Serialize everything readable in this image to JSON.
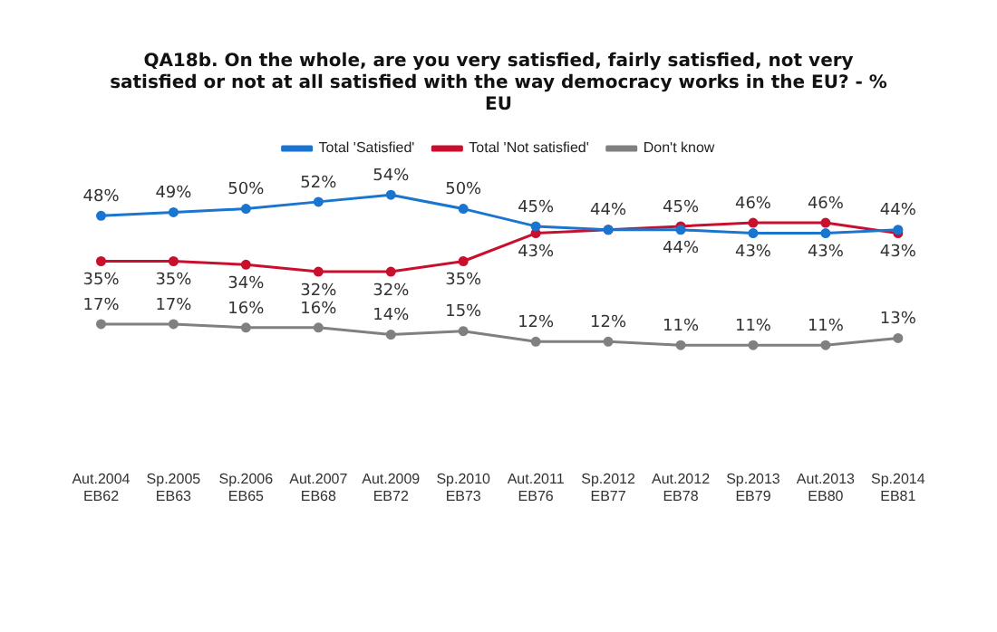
{
  "chart_data": {
    "type": "line",
    "title": "QA18b. On the whole, are you very satisfied, fairly satisfied, not very satisfied or not at all satisfied with the way democracy works in the EU? - % EU",
    "categories": [
      "Aut.2004 EB62",
      "Sp.2005 EB63",
      "Sp.2006 EB65",
      "Aut.2007 EB68",
      "Aut.2009 EB72",
      "Sp.2010 EB73",
      "Aut.2011 EB76",
      "Sp.2012 EB77",
      "Aut.2012 EB78",
      "Sp.2013 EB79",
      "Aut.2013 EB80",
      "Sp.2014 EB81"
    ],
    "series": [
      {
        "name": "Total 'Satisfied'",
        "color": "#1a75cf",
        "values": [
          48,
          49,
          50,
          52,
          54,
          50,
          45,
          44,
          44,
          43,
          43,
          44
        ],
        "value_labels": [
          "48%",
          "49%",
          "50%",
          "52%",
          "54%",
          "50%",
          "45%",
          null,
          "44%",
          "43%",
          "43%",
          "44%"
        ]
      },
      {
        "name": "Total 'Not satisfied'",
        "color": "#c8102e",
        "values": [
          35,
          35,
          34,
          32,
          32,
          35,
          43,
          44,
          45,
          46,
          46,
          43
        ],
        "value_labels": [
          "35%",
          "35%",
          "34%",
          "32%",
          "32%",
          "35%",
          "43%",
          "44%",
          "45%",
          "46%",
          "46%",
          "43%"
        ]
      },
      {
        "name": "Don't know",
        "color": "#808080",
        "values": [
          17,
          17,
          16,
          16,
          14,
          15,
          12,
          12,
          11,
          11,
          11,
          13
        ],
        "value_labels": [
          "17%",
          "17%",
          "16%",
          "16%",
          "14%",
          "15%",
          "12%",
          "12%",
          "11%",
          "11%",
          "11%",
          "13%"
        ]
      }
    ],
    "legend": "top",
    "marker": "circle",
    "line_style": "solid",
    "grid": false
  }
}
